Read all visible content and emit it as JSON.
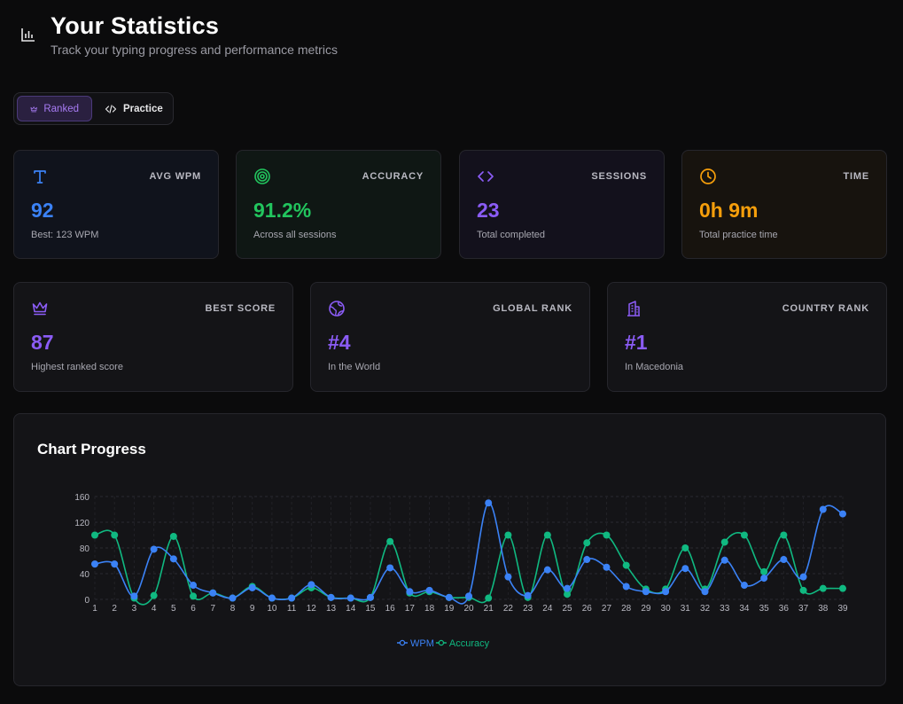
{
  "header": {
    "title": "Your Statistics",
    "subtitle": "Track your typing progress and performance metrics"
  },
  "mode_toggle": {
    "ranked_label": "Ranked",
    "practice_label": "Practice",
    "selected": "Ranked"
  },
  "stats_top": [
    {
      "label": "AVG WPM",
      "value": "92",
      "sub": "Best: 123 WPM",
      "color": "#3b82f6",
      "icon": "type-icon"
    },
    {
      "label": "ACCURACY",
      "value": "91.2%",
      "sub": "Across all sessions",
      "color": "#22c55e",
      "icon": "target-icon"
    },
    {
      "label": "SESSIONS",
      "value": "23",
      "sub": "Total completed",
      "color": "#8b5cf6",
      "icon": "code-icon"
    },
    {
      "label": "TIME",
      "value": "0h 9m",
      "sub": "Total practice time",
      "color": "#f59e0b",
      "icon": "clock-icon"
    }
  ],
  "stats_bottom": [
    {
      "label": "BEST SCORE",
      "value": "87",
      "sub": "Highest ranked score",
      "color": "#8b5cf6",
      "icon": "crown-icon"
    },
    {
      "label": "GLOBAL RANK",
      "value": "#4",
      "sub": "In the World",
      "color": "#8b5cf6",
      "icon": "globe-icon"
    },
    {
      "label": "COUNTRY RANK",
      "value": "#1",
      "sub": "In Macedonia",
      "color": "#8b5cf6",
      "icon": "building-icon"
    }
  ],
  "chart": {
    "title": "Chart Progress"
  },
  "chart_data": {
    "type": "line",
    "x": [
      1,
      2,
      3,
      4,
      5,
      6,
      7,
      8,
      9,
      10,
      11,
      12,
      13,
      14,
      15,
      16,
      17,
      18,
      19,
      20,
      21,
      22,
      23,
      24,
      25,
      26,
      27,
      28,
      29,
      30,
      31,
      32,
      33,
      34,
      35,
      36,
      37,
      38,
      39
    ],
    "ylim": [
      0,
      160
    ],
    "yticks": [
      0,
      40,
      80,
      120,
      160
    ],
    "grid": true,
    "legend_position": "bottom-center",
    "series": [
      {
        "name": "WPM",
        "color": "#3b82f6",
        "values": [
          55,
          55,
          5,
          78,
          63,
          22,
          10,
          2,
          18,
          2,
          2,
          23,
          3,
          2,
          3,
          49,
          12,
          14,
          3,
          5,
          150,
          35,
          6,
          46,
          17,
          62,
          50,
          20,
          12,
          12,
          48,
          12,
          61,
          22,
          33,
          62,
          35,
          140,
          133
        ]
      },
      {
        "name": "Accuracy",
        "color": "#10b981",
        "values": [
          100,
          100,
          2,
          6,
          98,
          5,
          10,
          2,
          20,
          2,
          2,
          18,
          3,
          2,
          3,
          90,
          10,
          12,
          3,
          3,
          2,
          100,
          3,
          100,
          8,
          88,
          100,
          53,
          16,
          16,
          80,
          16,
          89,
          100,
          43,
          100,
          14,
          17,
          17
        ]
      }
    ]
  }
}
